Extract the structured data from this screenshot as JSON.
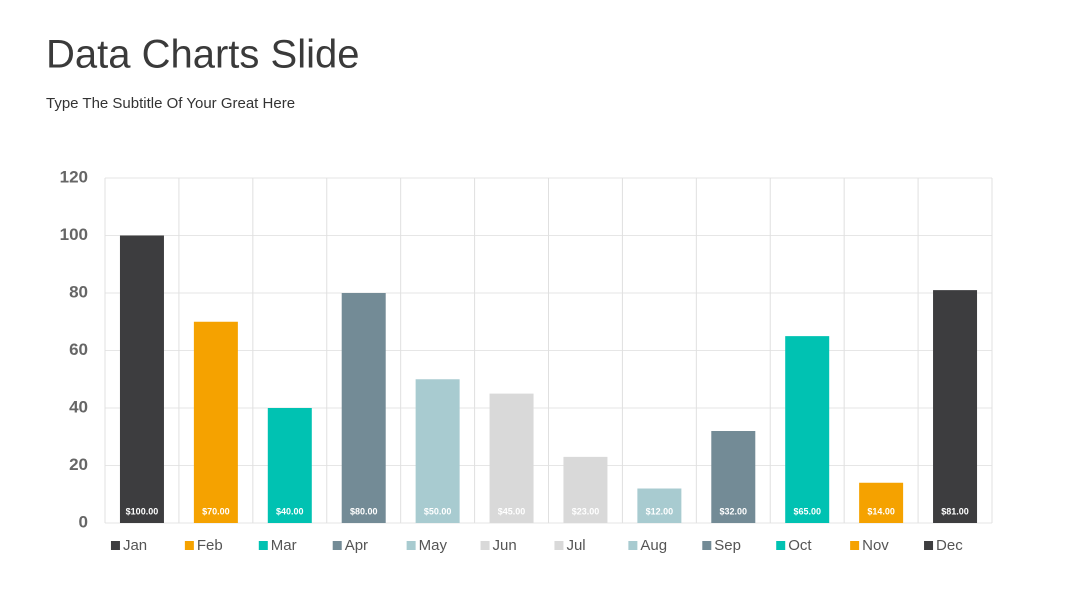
{
  "chart_data": {
    "type": "bar",
    "title": "Data Charts Slide",
    "subtitle": "Type The Subtitle Of Your Great Here",
    "categories": [
      "Jan",
      "Feb",
      "Mar",
      "Apr",
      "May",
      "Jun",
      "Jul",
      "Aug",
      "Sep",
      "Oct",
      "Nov",
      "Dec"
    ],
    "values": [
      100,
      70,
      40,
      80,
      50,
      45,
      23,
      12,
      32,
      65,
      14,
      81
    ],
    "value_labels": [
      "$100.00",
      "$70.00",
      "$40.00",
      "$80.00",
      "$50.00",
      "$45.00",
      "$23.00",
      "$12.00",
      "$32.00",
      "$65.00",
      "$14.00",
      "$81.00"
    ],
    "colors": [
      "#3d3d3f",
      "#f5a200",
      "#00c2b2",
      "#738b96",
      "#a8cbd0",
      "#d9d9d9",
      "#d9d9d9",
      "#a8cbd0",
      "#738b96",
      "#00c2b2",
      "#f5a200",
      "#3d3d3f"
    ],
    "ylim": [
      0,
      120
    ],
    "yticks": [
      0,
      20,
      40,
      60,
      80,
      100,
      120
    ],
    "grid": true
  }
}
